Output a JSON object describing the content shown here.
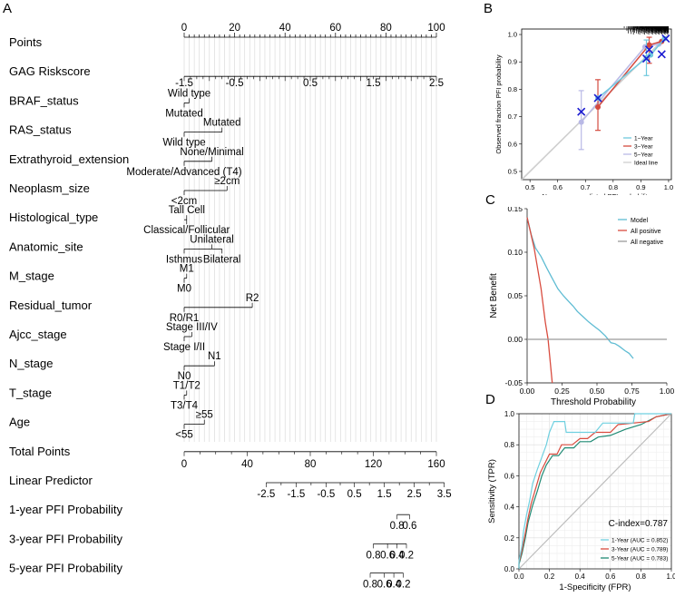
{
  "panels": {
    "A": {
      "letter": "A"
    },
    "B": {
      "letter": "B"
    },
    "C": {
      "letter": "C"
    },
    "D": {
      "letter": "D"
    }
  },
  "chart_data": [
    {
      "panel": "A",
      "type": "nomogram",
      "points_axis": {
        "label": "Points",
        "ticks": [
          "0",
          "20",
          "40",
          "60",
          "80",
          "100"
        ],
        "range": [
          0,
          100
        ]
      },
      "variables": [
        {
          "name": "GAG Riskscore",
          "ticks": [
            {
              "label": "-1.5",
              "points": 0
            },
            {
              "label": "-0.5",
              "points": 20
            },
            {
              "label": "0.5",
              "points": 50
            },
            {
              "label": "1.5",
              "points": 75
            },
            {
              "label": "2.5",
              "points": 100
            }
          ]
        },
        {
          "name": "BRAF_status",
          "levels": [
            {
              "label": "Wild type",
              "points": 2,
              "pos": "above"
            },
            {
              "label": "Mutated",
              "points": 0,
              "pos": "below"
            }
          ]
        },
        {
          "name": "RAS_status",
          "levels": [
            {
              "label": "Mutated",
              "points": 15,
              "pos": "above"
            },
            {
              "label": "Wild type",
              "points": 0,
              "pos": "below"
            }
          ]
        },
        {
          "name": "Extrathyroid_extension",
          "levels": [
            {
              "label": "None/Minimal",
              "points": 11,
              "pos": "above"
            },
            {
              "label": "Moderate/Advanced (T4)",
              "points": 0,
              "pos": "below"
            }
          ]
        },
        {
          "name": "Neoplasm_size",
          "levels": [
            {
              "label": "≥2cm",
              "points": 17,
              "pos": "above"
            },
            {
              "label": "<2cm",
              "points": 0,
              "pos": "below"
            }
          ]
        },
        {
          "name": "Histological_type",
          "levels": [
            {
              "label": "Tall Cell",
              "points": 1,
              "pos": "above"
            },
            {
              "label": "Classical/Follicular",
              "points": 1,
              "pos": "below"
            }
          ]
        },
        {
          "name": "Anatomic_site",
          "levels": [
            {
              "label": "Unilateral",
              "points": 11,
              "pos": "above"
            },
            {
              "label": "Isthmus",
              "points": 0,
              "pos": "below"
            },
            {
              "label": "Bilateral",
              "points": 15,
              "pos": "below"
            }
          ]
        },
        {
          "name": "M_stage",
          "levels": [
            {
              "label": "M1",
              "points": 1,
              "pos": "above"
            },
            {
              "label": "M0",
              "points": 0,
              "pos": "below"
            }
          ]
        },
        {
          "name": "Residual_tumor",
          "levels": [
            {
              "label": "R2",
              "points": 27,
              "pos": "above"
            },
            {
              "label": "R0/R1",
              "points": 0,
              "pos": "below"
            }
          ]
        },
        {
          "name": "Ajcc_stage",
          "levels": [
            {
              "label": "Stage III/IV",
              "points": 3,
              "pos": "above"
            },
            {
              "label": "Stage I/II",
              "points": 0,
              "pos": "below"
            }
          ]
        },
        {
          "name": "N_stage",
          "levels": [
            {
              "label": "N1",
              "points": 12,
              "pos": "above"
            },
            {
              "label": "N0",
              "points": 0,
              "pos": "below"
            }
          ]
        },
        {
          "name": "T_stage",
          "levels": [
            {
              "label": "T1/T2",
              "points": 1,
              "pos": "above"
            },
            {
              "label": "T3/T4",
              "points": 0,
              "pos": "below"
            }
          ]
        },
        {
          "name": "Age",
          "levels": [
            {
              "label": "≥55",
              "points": 8,
              "pos": "above"
            },
            {
              "label": "<55",
              "points": 0,
              "pos": "below"
            }
          ]
        }
      ],
      "total_points": {
        "label": "Total Points",
        "ticks": [
          "0",
          "40",
          "80",
          "120",
          "160"
        ],
        "range": [
          0,
          160
        ]
      },
      "linear_predictor": {
        "label": "Linear Predictor",
        "ticks": [
          "-2.5",
          "-1.5",
          "-0.5",
          "0.5",
          "1.5",
          "2.5",
          "3.5"
        ],
        "tick_total_points": [
          52,
          71,
          90,
          108,
          127,
          146,
          165
        ]
      },
      "probabilities": [
        {
          "label": "1-year PFI Probability",
          "ticks": [
            "0.8",
            "0.6"
          ],
          "tick_total_points": [
            135,
            143
          ]
        },
        {
          "label": "3-year PFI Probability",
          "ticks": [
            "0.8",
            "0.6",
            "0.4",
            "0.2"
          ],
          "tick_total_points": [
            120,
            129,
            135,
            141
          ]
        },
        {
          "label": "5-year PFI Probability",
          "ticks": [
            "0.8",
            "0.6",
            "0.4",
            "0.2"
          ],
          "tick_total_points": [
            118,
            127,
            133,
            139
          ]
        }
      ]
    },
    {
      "panel": "B",
      "type": "line",
      "xlabel": "Nomogram predicted PFI probability",
      "ylabel": "Observed fraction PFI probability",
      "xlim": [
        0.47,
        1.01
      ],
      "ylim": [
        0.47,
        1.02
      ],
      "xticks": [
        "0.5",
        "0.6",
        "0.7",
        "0.8",
        "0.9",
        "1.0"
      ],
      "yticks": [
        "0.5",
        "0.6",
        "0.7",
        "0.8",
        "0.9",
        "1.0"
      ],
      "legend_position": "bottom-right",
      "series": [
        {
          "name": "1−Year",
          "color": "#6fc9dd",
          "points": [
            [
              0.745,
              0.768
            ],
            [
              0.92,
              0.915
            ],
            [
              0.935,
              0.925
            ],
            [
              0.985,
              0.985
            ]
          ],
          "crosses": [
            [
              0.685,
              0.718
            ],
            [
              0.745,
              0.768
            ],
            [
              0.92,
              0.912
            ],
            [
              0.93,
              0.945
            ],
            [
              0.975,
              0.928
            ],
            [
              0.99,
              0.985
            ]
          ],
          "errors": [
            [
              0.92,
              0.85,
              0.98
            ]
          ]
        },
        {
          "name": "3−Year",
          "color": "#d44a3f",
          "points": [
            [
              0.745,
              0.735
            ],
            [
              0.93,
              0.962
            ],
            [
              0.975,
              0.975
            ]
          ],
          "errors": [
            [
              0.745,
              0.65,
              0.835
            ],
            [
              0.93,
              0.895,
              0.99
            ]
          ]
        },
        {
          "name": "5−Year",
          "color": "#b9b9e6",
          "points": [
            [
              0.685,
              0.68
            ],
            [
              0.915,
              0.955
            ],
            [
              0.965,
              0.965
            ]
          ],
          "errors": [
            [
              0.685,
              0.58,
              0.795
            ]
          ]
        },
        {
          "name": "Ideal line",
          "color": "#cfcfcf",
          "points": [
            [
              0.47,
              0.47
            ],
            [
              1.0,
              1.0
            ]
          ]
        }
      ]
    },
    {
      "panel": "C",
      "type": "line",
      "xlabel": "Threshold Probability",
      "ylabel": "Net Benefit",
      "xlim": [
        0,
        1
      ],
      "ylim": [
        -0.05,
        0.15
      ],
      "xticks": [
        "0.00",
        "0.25",
        "0.50",
        "0.75",
        "1.00"
      ],
      "yticks": [
        "-0.05",
        "0.00",
        "0.05",
        "0.10",
        "0.15"
      ],
      "legend_position": "top-right",
      "series": [
        {
          "name": "Model",
          "color": "#5fbcd3",
          "points": [
            [
              0,
              0.14
            ],
            [
              0.03,
              0.12
            ],
            [
              0.06,
              0.105
            ],
            [
              0.1,
              0.095
            ],
            [
              0.14,
              0.082
            ],
            [
              0.18,
              0.07
            ],
            [
              0.22,
              0.058
            ],
            [
              0.26,
              0.05
            ],
            [
              0.3,
              0.043
            ],
            [
              0.33,
              0.038
            ],
            [
              0.36,
              0.032
            ],
            [
              0.4,
              0.026
            ],
            [
              0.44,
              0.02
            ],
            [
              0.48,
              0.015
            ],
            [
              0.52,
              0.01
            ],
            [
              0.56,
              0.004
            ],
            [
              0.6,
              -0.004
            ],
            [
              0.63,
              -0.005
            ],
            [
              0.66,
              -0.008
            ],
            [
              0.7,
              -0.013
            ],
            [
              0.73,
              -0.016
            ],
            [
              0.76,
              -0.022
            ]
          ]
        },
        {
          "name": "All positive",
          "color": "#d94c3f",
          "points": [
            [
              0,
              0.14
            ],
            [
              0.05,
              0.105
            ],
            [
              0.1,
              0.058
            ],
            [
              0.13,
              0.02
            ],
            [
              0.15,
              0.0
            ],
            [
              0.18,
              -0.05
            ]
          ]
        },
        {
          "name": "All negative",
          "color": "#9a9a9a",
          "points": [
            [
              0,
              0
            ],
            [
              1,
              0
            ]
          ]
        }
      ]
    },
    {
      "panel": "D",
      "type": "line",
      "xlabel": "1-Specificity (FPR)",
      "ylabel": "Sensitivity (TPR)",
      "xlim": [
        0,
        1
      ],
      "ylim": [
        0,
        1
      ],
      "xticks": [
        "0.0",
        "0.2",
        "0.4",
        "0.6",
        "0.8",
        "1.0"
      ],
      "yticks": [
        "0.0",
        "0.2",
        "0.4",
        "0.6",
        "0.8",
        "1.0"
      ],
      "grid": true,
      "legend_position": "bottom-right",
      "annotation": "C-index=0.787",
      "series": [
        {
          "name": "1-Year (AUC = 0.852)",
          "color": "#6fd0e0",
          "points": [
            [
              0,
              0
            ],
            [
              0,
              0.05
            ],
            [
              0.02,
              0.15
            ],
            [
              0.03,
              0.24
            ],
            [
              0.05,
              0.35
            ],
            [
              0.07,
              0.44
            ],
            [
              0.09,
              0.55
            ],
            [
              0.12,
              0.64
            ],
            [
              0.15,
              0.72
            ],
            [
              0.18,
              0.8
            ],
            [
              0.2,
              0.88
            ],
            [
              0.23,
              0.95
            ],
            [
              0.3,
              0.95
            ],
            [
              0.31,
              0.88
            ],
            [
              0.5,
              0.88
            ],
            [
              0.55,
              0.94
            ],
            [
              0.75,
              0.94
            ],
            [
              0.76,
              1
            ],
            [
              1,
              1
            ]
          ]
        },
        {
          "name": "3-Year (AUC = 0.789)",
          "color": "#d94c3f",
          "points": [
            [
              0,
              0
            ],
            [
              0,
              0.04
            ],
            [
              0.02,
              0.12
            ],
            [
              0.04,
              0.22
            ],
            [
              0.06,
              0.33
            ],
            [
              0.08,
              0.42
            ],
            [
              0.11,
              0.52
            ],
            [
              0.14,
              0.62
            ],
            [
              0.17,
              0.68
            ],
            [
              0.2,
              0.74
            ],
            [
              0.25,
              0.74
            ],
            [
              0.28,
              0.8
            ],
            [
              0.35,
              0.8
            ],
            [
              0.4,
              0.84
            ],
            [
              0.45,
              0.84
            ],
            [
              0.5,
              0.88
            ],
            [
              0.6,
              0.88
            ],
            [
              0.65,
              0.93
            ],
            [
              0.85,
              0.95
            ],
            [
              0.9,
              0.98
            ],
            [
              1,
              1
            ]
          ]
        },
        {
          "name": "5-Year (AUC = 0.783)",
          "color": "#1f8a74",
          "points": [
            [
              0,
              0
            ],
            [
              0,
              0.03
            ],
            [
              0.02,
              0.1
            ],
            [
              0.04,
              0.19
            ],
            [
              0.06,
              0.3
            ],
            [
              0.09,
              0.41
            ],
            [
              0.12,
              0.5
            ],
            [
              0.15,
              0.6
            ],
            [
              0.18,
              0.67
            ],
            [
              0.22,
              0.73
            ],
            [
              0.26,
              0.73
            ],
            [
              0.3,
              0.78
            ],
            [
              0.36,
              0.78
            ],
            [
              0.4,
              0.82
            ],
            [
              0.47,
              0.82
            ],
            [
              0.52,
              0.85
            ],
            [
              0.6,
              0.86
            ],
            [
              0.7,
              0.9
            ],
            [
              0.8,
              0.93
            ],
            [
              0.9,
              0.98
            ],
            [
              1,
              1
            ]
          ]
        },
        {
          "name": "",
          "color": "#bdbdbd",
          "points": [
            [
              0,
              0
            ],
            [
              1,
              1
            ]
          ]
        }
      ]
    }
  ]
}
